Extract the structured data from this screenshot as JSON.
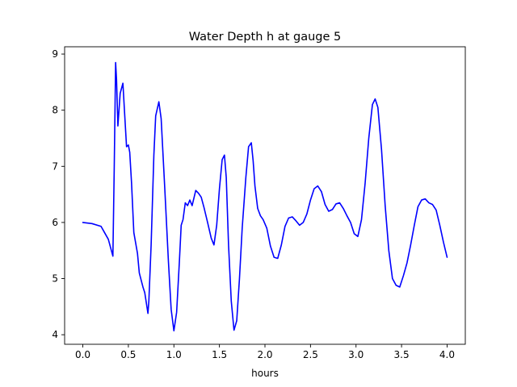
{
  "chart_data": {
    "type": "line",
    "title": "Water Depth h at gauge 5",
    "xlabel": "hours",
    "ylabel": "",
    "xlim": [
      -0.2,
      4.2
    ],
    "ylim": [
      3.83,
      9.13
    ],
    "xticks": [
      0.0,
      0.5,
      1.0,
      1.5,
      2.0,
      2.5,
      3.0,
      3.5,
      4.0
    ],
    "xtick_labels": [
      "0.0",
      "0.5",
      "1.0",
      "1.5",
      "2.0",
      "2.5",
      "3.0",
      "3.5",
      "4.0"
    ],
    "yticks": [
      4,
      5,
      6,
      7,
      8,
      9
    ],
    "ytick_labels": [
      "4",
      "5",
      "6",
      "7",
      "8",
      "9"
    ],
    "grid": false,
    "series": [
      {
        "color": "#0000ff",
        "x": [
          0.0,
          0.1,
          0.2,
          0.28,
          0.33,
          0.345,
          0.36,
          0.37,
          0.385,
          0.41,
          0.44,
          0.455,
          0.48,
          0.5,
          0.515,
          0.535,
          0.56,
          0.6,
          0.62,
          0.66,
          0.68,
          0.715,
          0.725,
          0.75,
          0.78,
          0.8,
          0.835,
          0.86,
          0.9,
          0.94,
          0.97,
          1.0,
          1.03,
          1.06,
          1.08,
          1.1,
          1.125,
          1.15,
          1.175,
          1.2,
          1.24,
          1.27,
          1.3,
          1.33,
          1.37,
          1.41,
          1.44,
          1.47,
          1.5,
          1.53,
          1.555,
          1.575,
          1.6,
          1.63,
          1.66,
          1.69,
          1.72,
          1.75,
          1.79,
          1.82,
          1.85,
          1.87,
          1.89,
          1.92,
          1.95,
          1.98,
          2.02,
          2.06,
          2.1,
          2.14,
          2.18,
          2.22,
          2.26,
          2.3,
          2.34,
          2.38,
          2.42,
          2.46,
          2.5,
          2.54,
          2.58,
          2.62,
          2.66,
          2.7,
          2.74,
          2.78,
          2.82,
          2.86,
          2.9,
          2.94,
          2.98,
          3.02,
          3.06,
          3.1,
          3.14,
          3.18,
          3.21,
          3.24,
          3.28,
          3.32,
          3.36,
          3.4,
          3.44,
          3.48,
          3.52,
          3.56,
          3.6,
          3.64,
          3.68,
          3.72,
          3.76,
          3.8,
          3.84,
          3.88,
          3.92,
          3.96,
          4.0
        ],
        "y": [
          6.0,
          5.98,
          5.93,
          5.7,
          5.4,
          7.0,
          8.85,
          8.55,
          7.72,
          8.3,
          8.48,
          8.05,
          7.35,
          7.38,
          7.25,
          6.7,
          5.82,
          5.45,
          5.1,
          4.85,
          4.75,
          4.38,
          4.6,
          5.6,
          7.2,
          7.9,
          8.15,
          7.85,
          6.6,
          5.3,
          4.45,
          4.07,
          4.4,
          5.3,
          5.95,
          6.05,
          6.35,
          6.3,
          6.4,
          6.3,
          6.57,
          6.52,
          6.45,
          6.27,
          6.0,
          5.72,
          5.6,
          5.95,
          6.6,
          7.12,
          7.2,
          6.8,
          5.6,
          4.6,
          4.08,
          4.25,
          5.0,
          5.9,
          6.8,
          7.35,
          7.42,
          7.1,
          6.65,
          6.25,
          6.12,
          6.05,
          5.9,
          5.58,
          5.38,
          5.36,
          5.6,
          5.93,
          6.08,
          6.1,
          6.03,
          5.95,
          6.0,
          6.15,
          6.4,
          6.6,
          6.65,
          6.55,
          6.32,
          6.2,
          6.23,
          6.33,
          6.35,
          6.25,
          6.12,
          6.0,
          5.8,
          5.75,
          6.05,
          6.7,
          7.5,
          8.1,
          8.2,
          8.05,
          7.3,
          6.3,
          5.5,
          5.0,
          4.88,
          4.85,
          5.05,
          5.28,
          5.6,
          5.95,
          6.28,
          6.4,
          6.42,
          6.35,
          6.32,
          6.22,
          5.95,
          5.65,
          5.38
        ]
      }
    ]
  }
}
